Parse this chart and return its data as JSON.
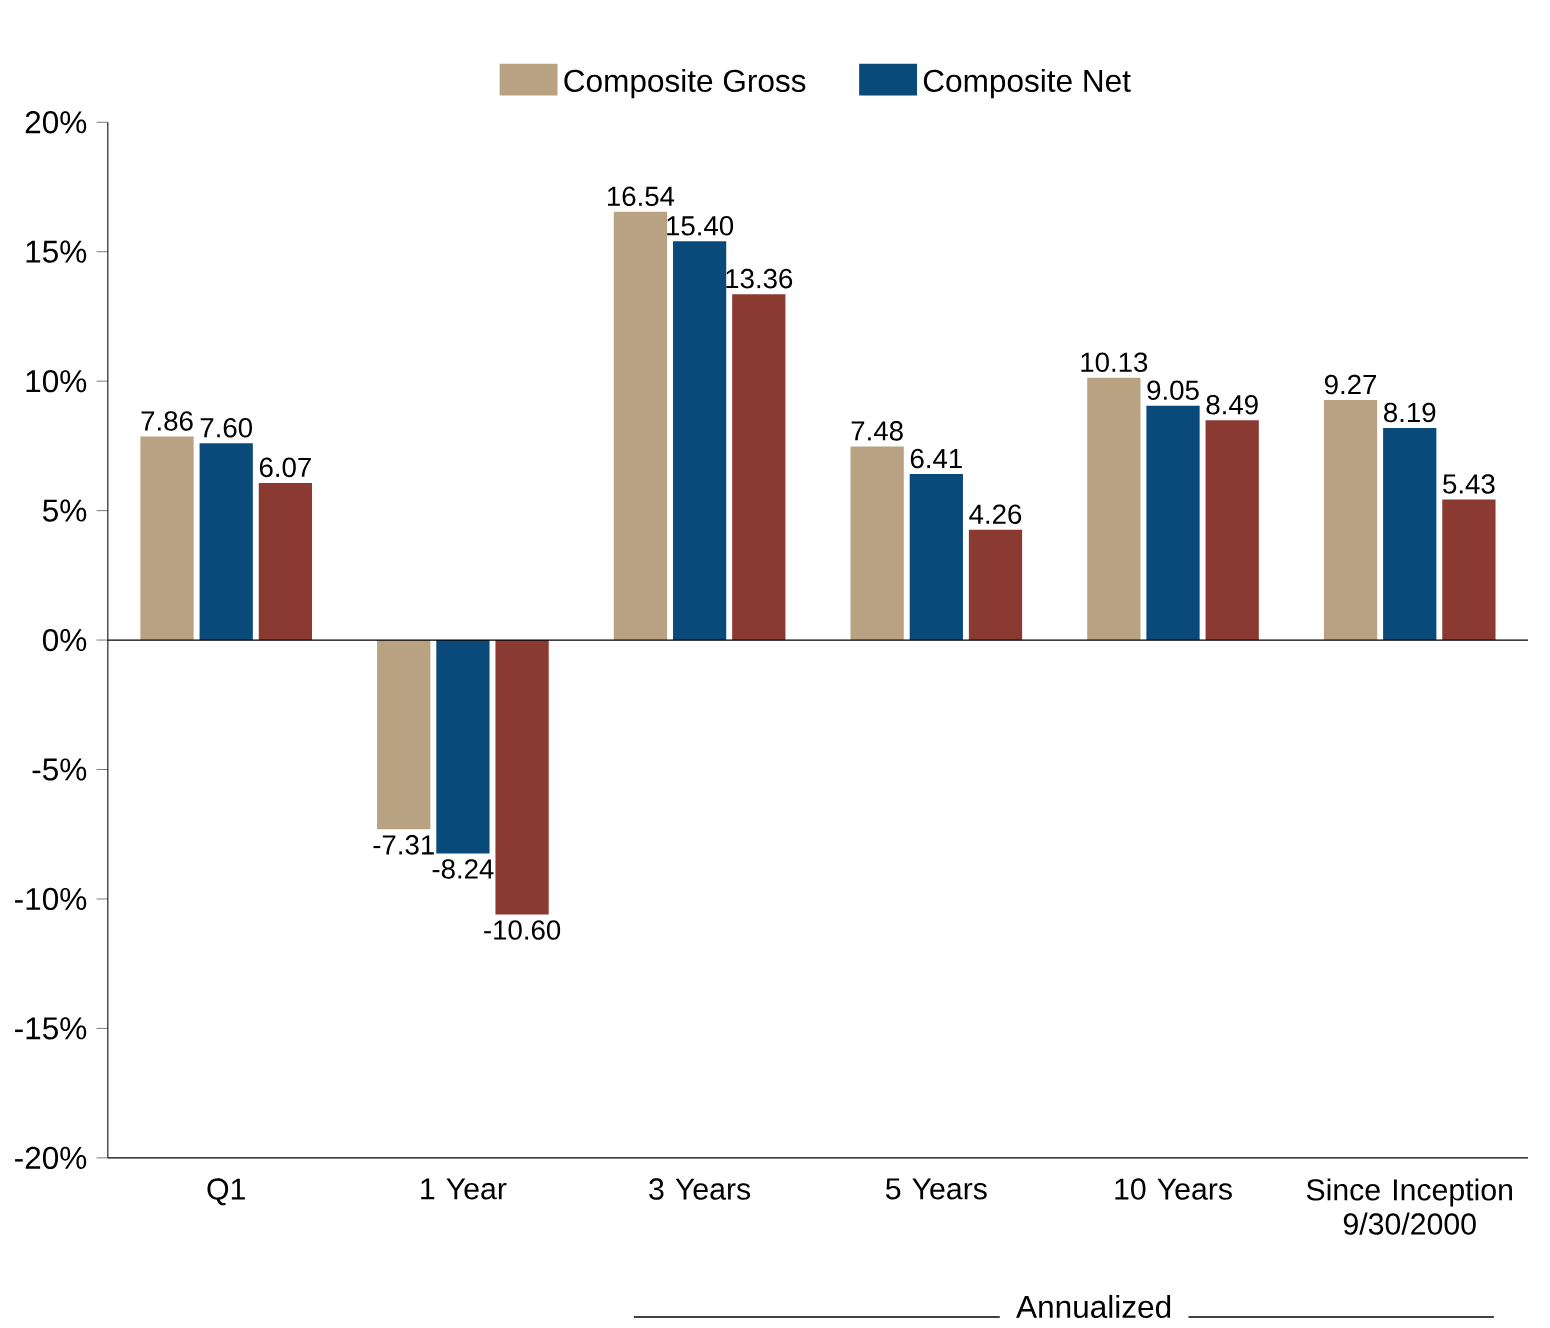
{
  "chart_data": {
    "type": "bar",
    "categories": [
      "Q1",
      "1 Year",
      "3 Years",
      "5 Years",
      "10 Years",
      "Since Inception 9/30/2000"
    ],
    "series": [
      {
        "name": "Composite Gross",
        "color": "#b8a282",
        "values": [
          7.86,
          -7.31,
          16.54,
          7.48,
          10.13,
          9.27
        ],
        "value_labels": [
          "7.86",
          "-7.31",
          "16.54",
          "7.48",
          "10.13",
          "9.27"
        ]
      },
      {
        "name": "Composite Net",
        "color": "#0a4a7a",
        "values": [
          7.6,
          -8.24,
          15.4,
          6.41,
          9.05,
          8.19
        ],
        "value_labels": [
          "7.60",
          "-8.24",
          "15.40",
          "6.41",
          "9.05",
          "8.19"
        ]
      },
      {
        "color": "#8b3a32",
        "values": [
          6.07,
          -10.6,
          13.36,
          4.26,
          8.49,
          5.43
        ],
        "value_labels": [
          "6.07",
          "-10.60",
          "13.36",
          "4.26",
          "8.49",
          "5.43"
        ]
      }
    ],
    "ylim": [
      -20,
      20
    ],
    "yticks": [
      {
        "value": -20,
        "label": "-20%"
      },
      {
        "value": -15,
        "label": "-15%"
      },
      {
        "value": -10,
        "label": "-10%"
      },
      {
        "value": -5,
        "label": "-5%"
      },
      {
        "value": 0,
        "label": "0%"
      },
      {
        "value": 5,
        "label": "5%"
      },
      {
        "value": 10,
        "label": "10%"
      },
      {
        "value": 15,
        "label": "15%"
      },
      {
        "value": 20,
        "label": "20%"
      }
    ],
    "legend": "top",
    "annotations": [
      "Annualized"
    ]
  }
}
